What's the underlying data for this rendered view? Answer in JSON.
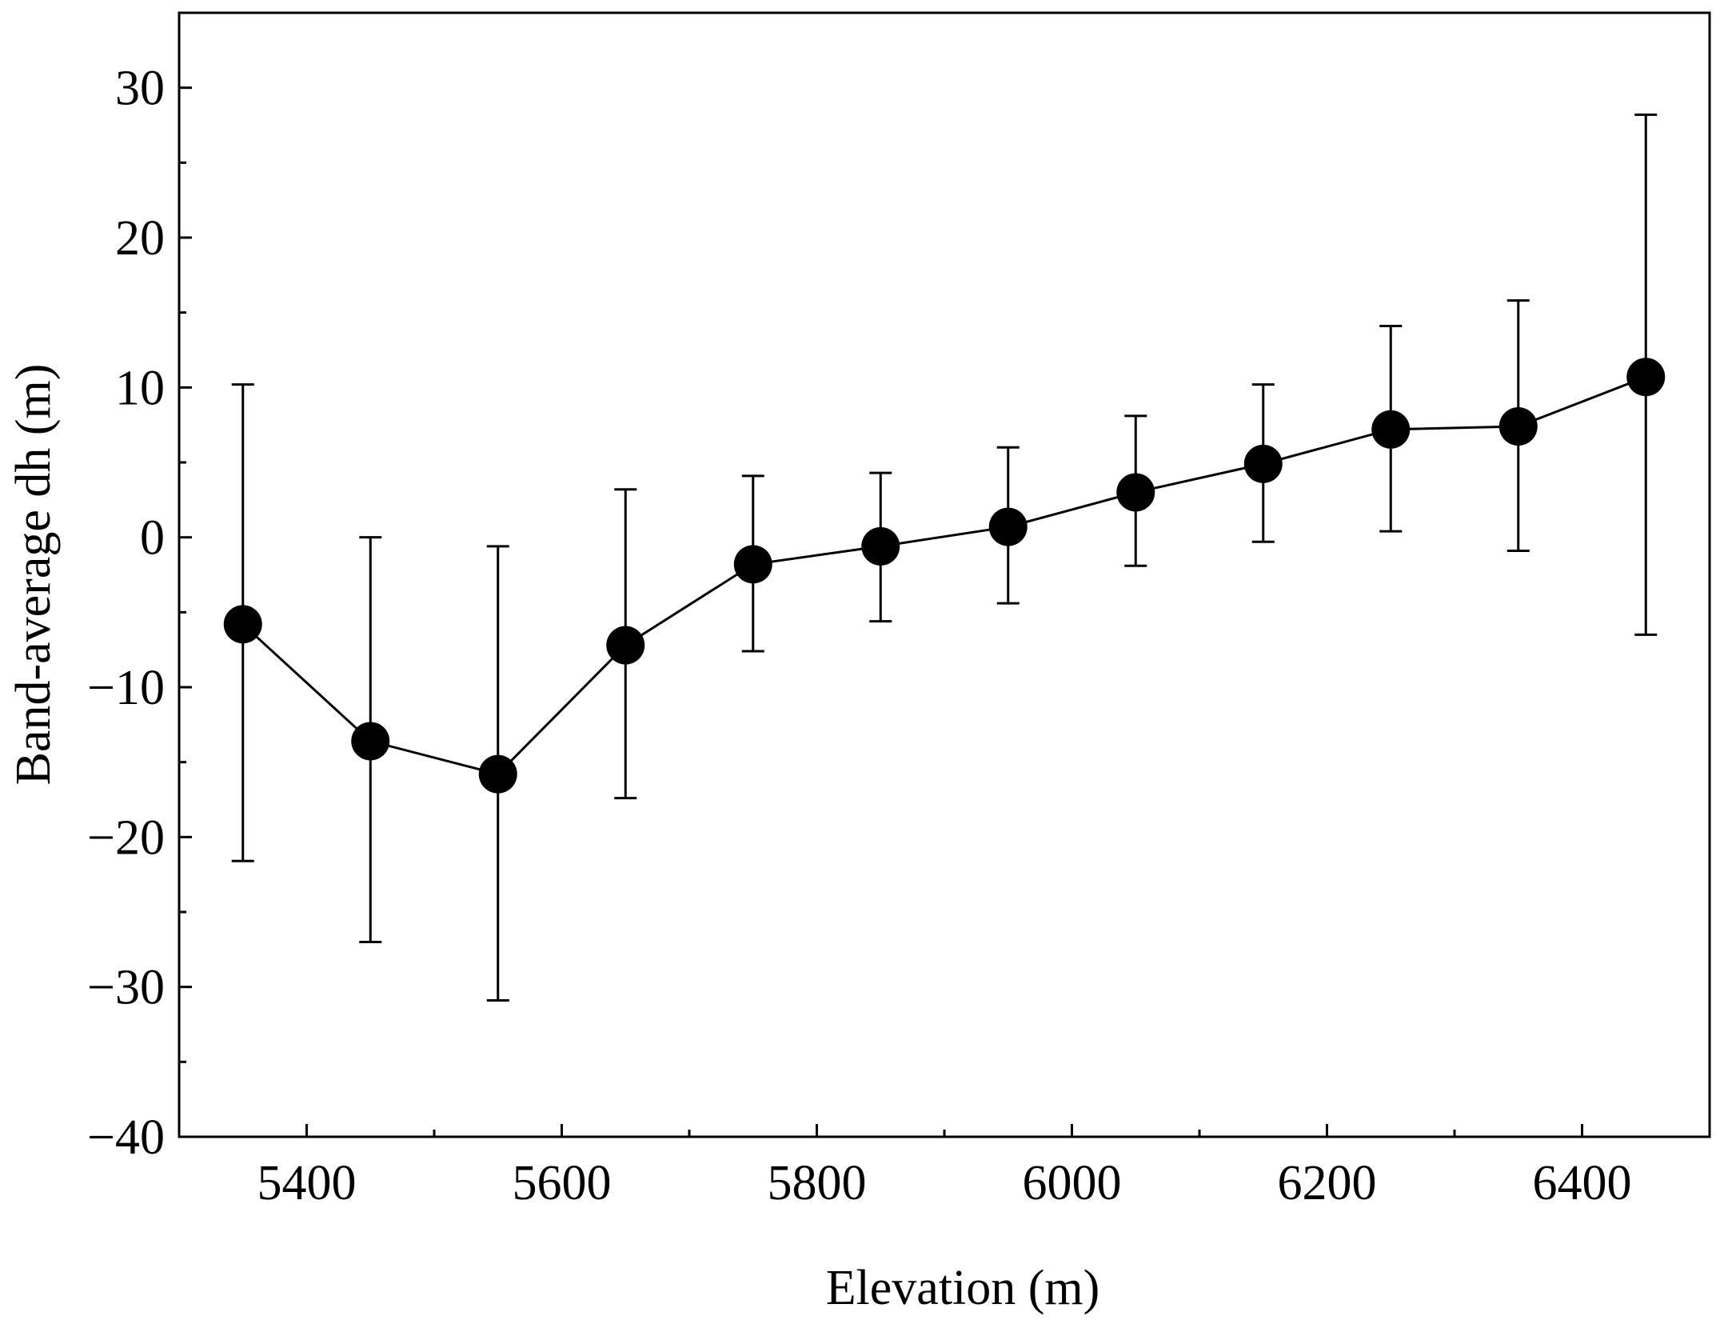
{
  "chart_data": {
    "type": "line",
    "xlabel": "Elevation (m)",
    "ylabel": "Band-average dh (m)",
    "xlim": [
      5300,
      6500
    ],
    "ylim": [
      -40,
      35
    ],
    "x_ticks": [
      5400,
      5600,
      5800,
      6000,
      6200,
      6400
    ],
    "x_tick_labels": [
      "5400",
      "5600",
      "5800",
      "6000",
      "6200",
      "6400"
    ],
    "y_ticks": [
      -40,
      -30,
      -20,
      -10,
      0,
      10,
      20,
      30
    ],
    "y_tick_labels": [
      "−40",
      "−30",
      "−20",
      "−10",
      "0",
      "10",
      "20",
      "30"
    ],
    "grid": false,
    "series": [
      {
        "x": [
          5350,
          5450,
          5550,
          5650,
          5750,
          5850,
          5950,
          6050,
          6150,
          6250,
          6350,
          6450
        ],
        "values": [
          -5.8,
          -13.6,
          -15.8,
          -7.2,
          -1.8,
          -0.6,
          0.7,
          3.0,
          4.9,
          7.2,
          7.4,
          10.7
        ],
        "error_low": [
          -21.6,
          -27.0,
          -30.9,
          -17.4,
          -7.6,
          -5.6,
          -4.4,
          -1.9,
          -0.3,
          0.4,
          -0.9,
          -6.5
        ],
        "error_high": [
          10.2,
          0.0,
          -0.6,
          3.2,
          4.1,
          4.3,
          6.0,
          8.1,
          10.2,
          14.1,
          15.8,
          28.2
        ]
      }
    ],
    "colors": {
      "line": "#000000",
      "marker": "#000000"
    }
  }
}
